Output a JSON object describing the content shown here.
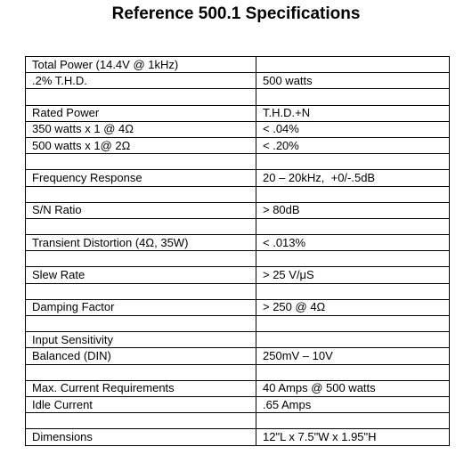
{
  "header": {
    "title": "Reference 500.1 Specifications"
  },
  "table": {
    "rows": [
      {
        "label": "Total Power (14.4V @ 1kHz)"
      },
      {
        "label": ".2% T.H.D.",
        "value": "500 watts"
      },
      {
        "label": "Rated Power",
        "value": "T.H.D.+N"
      },
      {
        "label": "350 watts x 1 @ 4Ω",
        "value": "< .04%"
      },
      {
        "label": "500 watts x 1@ 2Ω",
        "value": "< .20%"
      },
      {
        "label": "Frequency Response",
        "value": "20 – 20kHz,  +0/-.5dB"
      },
      {
        "label": "S/N Ratio",
        "value": "> 80dB"
      },
      {
        "label": "Transient Distortion (4Ω, 35W)",
        "value": "< .013%"
      },
      {
        "label": "Slew Rate",
        "value": "> 25 V/μS"
      },
      {
        "label": "Damping Factor",
        "value": "> 250 @ 4Ω"
      },
      {
        "label": "Input Sensitivity"
      },
      {
        "label": "Balanced (DIN)",
        "value": "250mV – 10V"
      },
      {
        "label": "Max. Current Requirements",
        "value": "40 Amps @ 500 watts"
      },
      {
        "label": "Idle Current",
        "value": ".65 Amps"
      },
      {
        "label": "Dimensions",
        "value": "12\"L x 7.5\"W x 1.95\"H"
      }
    ]
  }
}
